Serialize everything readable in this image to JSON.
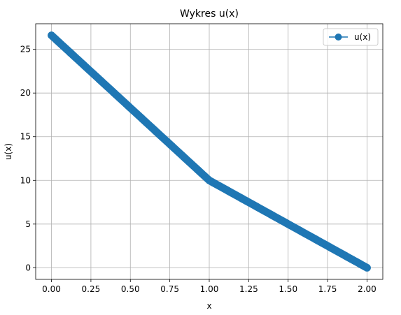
{
  "chart_data": {
    "type": "line",
    "title": "Wykres u(x)",
    "xlabel": "x",
    "ylabel": "u(x)",
    "xlim": [
      -0.1,
      2.1
    ],
    "ylim": [
      -1.33,
      27.93
    ],
    "xticks": [
      0.0,
      0.25,
      0.5,
      0.75,
      1.0,
      1.25,
      1.5,
      1.75,
      2.0
    ],
    "xtick_labels": [
      "0.00",
      "0.25",
      "0.50",
      "0.75",
      "1.00",
      "1.25",
      "1.50",
      "1.75",
      "2.00"
    ],
    "yticks": [
      0,
      5,
      10,
      15,
      20,
      25
    ],
    "ytick_labels": [
      "0",
      "5",
      "10",
      "15",
      "20",
      "25"
    ],
    "grid": true,
    "legend_position": "top-right",
    "series": [
      {
        "name": "u(x)",
        "color": "#1f77b4",
        "marker": "circle",
        "x": [
          0.0,
          1.0,
          2.0
        ],
        "y": [
          26.6,
          10.0,
          0.0
        ]
      }
    ]
  }
}
